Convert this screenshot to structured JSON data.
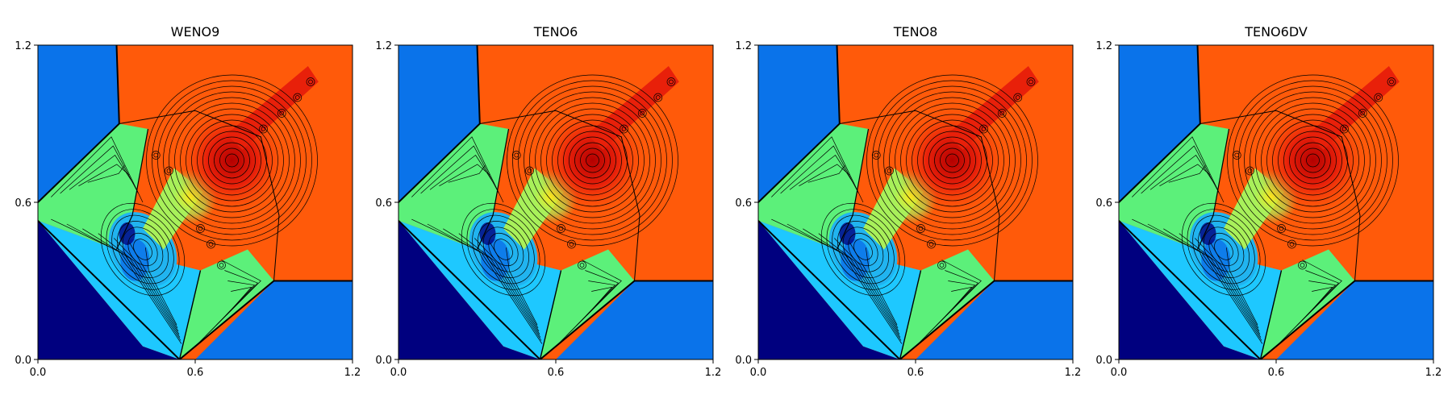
{
  "chart_data": [
    {
      "type": "heatmap",
      "title": "WENO9",
      "xlim": [
        0.0,
        1.2
      ],
      "ylim": [
        0.0,
        1.2
      ],
      "xticks": [
        "0.0",
        "0.6",
        "1.2"
      ],
      "yticks": [
        "0.0",
        "0.6",
        "1.2"
      ],
      "colormap": "jet",
      "contour_color": "#000000"
    },
    {
      "type": "heatmap",
      "title": "TENO6",
      "xlim": [
        0.0,
        1.2
      ],
      "ylim": [
        0.0,
        1.2
      ],
      "xticks": [
        "0.0",
        "0.6",
        "1.2"
      ],
      "yticks": [
        "0.0",
        "0.6",
        "1.2"
      ],
      "colormap": "jet",
      "contour_color": "#000000"
    },
    {
      "type": "heatmap",
      "title": "TENO8",
      "xlim": [
        0.0,
        1.2
      ],
      "ylim": [
        0.0,
        1.2
      ],
      "xticks": [
        "0.0",
        "0.6",
        "1.2"
      ],
      "yticks": [
        "0.0",
        "0.6",
        "1.2"
      ],
      "colormap": "jet",
      "contour_color": "#000000"
    },
    {
      "type": "heatmap",
      "title": "TENO6DV",
      "xlim": [
        0.0,
        1.2
      ],
      "ylim": [
        0.0,
        1.2
      ],
      "xticks": [
        "0.0",
        "0.6",
        "1.2"
      ],
      "yticks": [
        "0.0",
        "0.6",
        "1.2"
      ],
      "colormap": "jet",
      "contour_color": "#000000"
    }
  ],
  "colors": {
    "dark_blue": "#00007f",
    "blue": "#0a73ea",
    "light_blue": "#21b4f0",
    "cyan": "#1ec8ff",
    "green": "#5cf07a",
    "yellow_green": "#a8f05a",
    "yellow": "#ffe81a",
    "orange": "#ff5a0a",
    "red": "#e8200a",
    "dark_red": "#b40000"
  }
}
